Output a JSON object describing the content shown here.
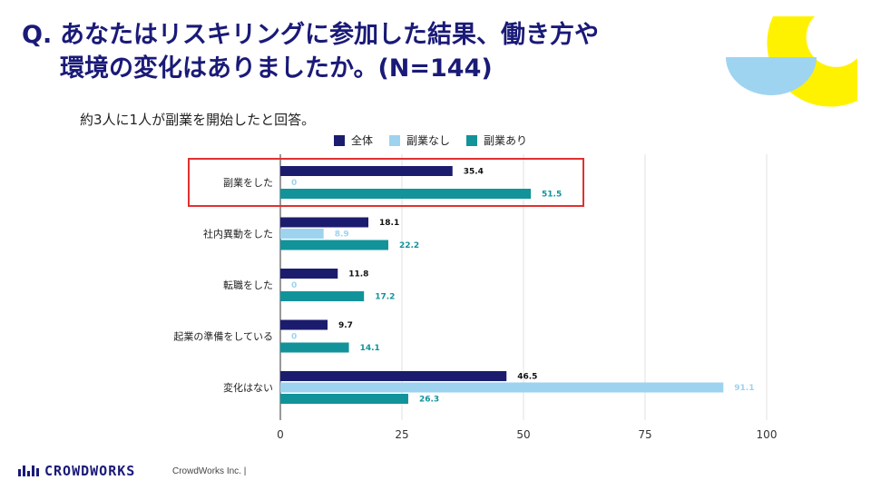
{
  "title": {
    "prefix": "Q.",
    "line1": "あなたはリスキリングに参加した結果、働き方や",
    "line2": "環境の変化はありましたか。(N=144)"
  },
  "subtitle": "約3人に1人が副業を開始したと回答。",
  "colors": {
    "title": "#1a1a78",
    "series_all": "#1c1c6e",
    "series_none": "#9dd3ef",
    "series_yes": "#12939a",
    "highlight": "#e23030",
    "deco_yellow": "#fff200",
    "deco_blue": "#9ed4f0"
  },
  "footer": {
    "logo_text": "CROWDWORKS",
    "company": "CrowdWorks Inc. |"
  },
  "chart_data": {
    "type": "bar",
    "orientation": "horizontal",
    "categories": [
      "副業をした",
      "社内異動をした",
      "転職をした",
      "起業の準備をしている",
      "変化はない"
    ],
    "series": [
      {
        "name": "全体",
        "values": [
          35.4,
          18.1,
          11.8,
          9.7,
          46.5
        ]
      },
      {
        "name": "副業なし",
        "values": [
          0,
          8.9,
          0,
          0,
          91.1
        ]
      },
      {
        "name": "副業あり",
        "values": [
          51.5,
          22.2,
          17.2,
          14.1,
          26.3
        ]
      }
    ],
    "xlim": [
      0,
      100
    ],
    "xticks": [
      0,
      25,
      50,
      75,
      100
    ],
    "legend": "top",
    "grid": true,
    "highlighted_category": "副業をした"
  }
}
